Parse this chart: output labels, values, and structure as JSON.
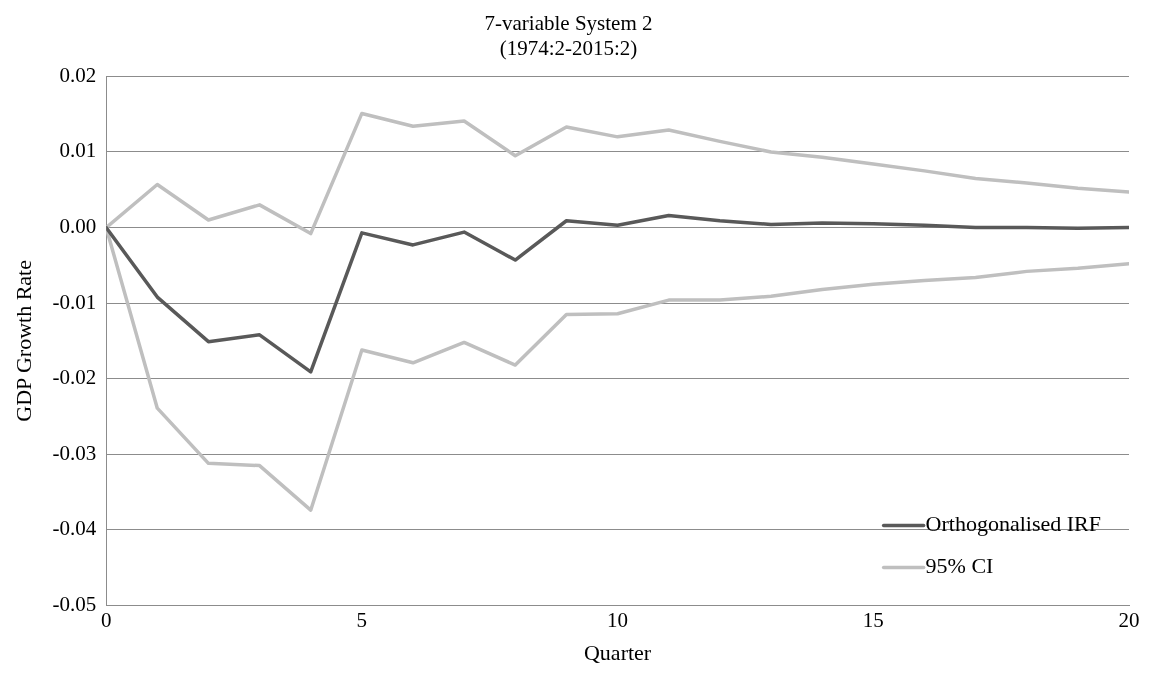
{
  "chart_data": {
    "type": "line",
    "title": "7-variable System 2",
    "subtitle": "(1974:2-2015:2)",
    "xlabel": "Quarter",
    "ylabel": "GDP Growth Rate",
    "x": [
      0,
      1,
      2,
      3,
      4,
      5,
      6,
      7,
      8,
      9,
      10,
      11,
      12,
      13,
      14,
      15,
      16,
      17,
      18,
      19,
      20
    ],
    "series": [
      {
        "name": "Orthogonalised IRF",
        "color": "#595959",
        "values": [
          0,
          -0.0092,
          -0.0151,
          -0.0142,
          -0.0191,
          -0.0007,
          -0.0023,
          -0.0006,
          -0.0043,
          0.0009,
          0.0003,
          0.0016,
          0.0009,
          0.0004,
          0.0006,
          0.0005,
          0.0003,
          0,
          0,
          -0.0001,
          0
        ]
      },
      {
        "name": "95% CI",
        "color": "#bfbfbf",
        "values": [
          0,
          0.0057,
          0.001,
          0.003,
          -0.0008,
          0.0151,
          0.0134,
          0.0141,
          0.0095,
          0.0133,
          0.012,
          0.0129,
          0.0114,
          0.01,
          0.0093,
          0.0084,
          0.0075,
          0.0065,
          0.0059,
          0.0052,
          0.0047
        ]
      },
      {
        "color": "#bfbfbf",
        "values": [
          0,
          -0.0239,
          -0.0312,
          -0.0315,
          -0.0374,
          -0.0162,
          -0.0179,
          -0.0152,
          -0.0182,
          -0.0115,
          -0.0114,
          -0.0096,
          -0.0096,
          -0.0091,
          -0.0082,
          -0.0075,
          -0.007,
          -0.0066,
          -0.0058,
          -0.0054,
          -0.0048
        ]
      }
    ],
    "xlim": [
      0,
      20
    ],
    "xticks": [
      0,
      5,
      10,
      15,
      20
    ],
    "ylim": [
      -0.05,
      0.02
    ],
    "yticks": [
      -0.05,
      -0.04,
      -0.03,
      -0.02,
      -0.01,
      {
        "value": 0,
        "label": "0.00"
      },
      0.01,
      0.02
    ],
    "grid": "y",
    "legend": "bottom right",
    "marker": "none",
    "line_style": "solid"
  }
}
